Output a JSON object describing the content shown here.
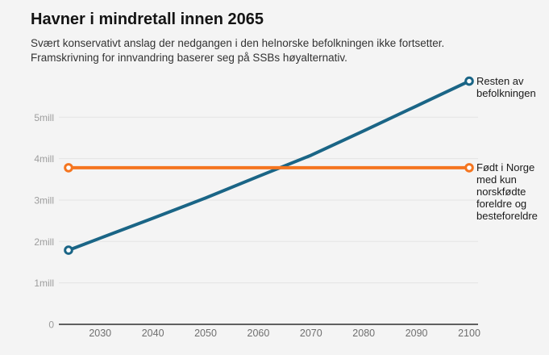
{
  "chart_data": {
    "type": "line",
    "title": "Havner i mindretall innen 2065",
    "subtitle_lines": [
      "Svært konservativt anslag der nedgangen i den helnorske befolkningen ikke fortsetter.",
      "Framskrivning for innvandring baserer seg på SSBs høyalternativ."
    ],
    "x": [
      2024,
      2030,
      2040,
      2050,
      2060,
      2070,
      2080,
      2090,
      2100
    ],
    "series": [
      {
        "name": "Resten av befolkningen",
        "label": "Resten av befolkningen",
        "color": "#1a6586",
        "values": [
          1.79,
          2.08,
          2.56,
          3.05,
          3.57,
          4.08,
          4.67,
          5.27,
          5.87
        ]
      },
      {
        "name": "Født i Norge med kun norskfødte foreldre og besteforeldre",
        "label": "Født i Norge med kun norskfødte foreldre og besteforeldre",
        "color": "#f5751f",
        "values": [
          3.78,
          3.78,
          3.78,
          3.78,
          3.78,
          3.78,
          3.78,
          3.78,
          3.78
        ]
      }
    ],
    "y_ticks": [
      {
        "value": 0,
        "label": "0"
      },
      {
        "value": 1,
        "label": "1mill"
      },
      {
        "value": 2,
        "label": "2mill"
      },
      {
        "value": 3,
        "label": "3mill"
      },
      {
        "value": 4,
        "label": "4mill"
      },
      {
        "value": 5,
        "label": "5mill"
      }
    ],
    "x_ticks": [
      2030,
      2040,
      2050,
      2060,
      2070,
      2080,
      2090,
      2100
    ],
    "xlim": [
      2024,
      2100
    ],
    "ylim": [
      0,
      6.1
    ],
    "unit": "mill",
    "grid": "horizontal",
    "legend_position": "labels-right-of-line-ends",
    "crossing_year_highlighted_in_title": 2065,
    "colors": {
      "background": "#f4f4f4",
      "gridline": "#e3e3e3",
      "baseline": "#2f2f2f",
      "y_tick_text": "#9d9d9d",
      "x_tick_text": "#6f6f6f"
    }
  }
}
